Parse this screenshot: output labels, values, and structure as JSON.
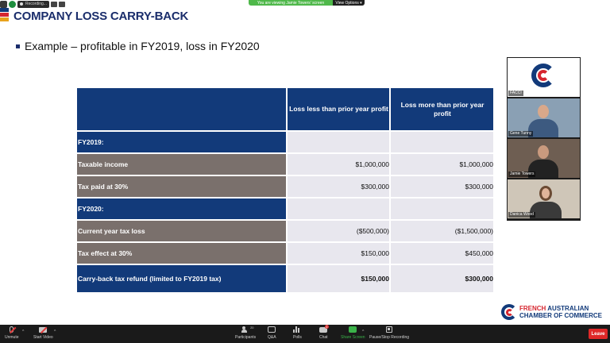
{
  "topbar": {
    "recording_label": "Recording...",
    "share_banner": "You are viewing Jamie Towers' screen",
    "view_options": "View Options ▾"
  },
  "slide": {
    "title": "COMPANY LOSS CARRY-BACK",
    "bullet": "Example – profitable in FY2019, loss in FY2020",
    "table": {
      "headers": [
        "",
        "Loss less than prior year profit",
        "Loss more than prior year profit"
      ],
      "rows": [
        {
          "label": "FY2019:",
          "v1": "",
          "v2": ""
        },
        {
          "label": "Taxable income",
          "v1": "$1,000,000",
          "v2": "$1,000,000"
        },
        {
          "label": "Tax paid at 30%",
          "v1": "$300,000",
          "v2": "$300,000"
        },
        {
          "label": "FY2020:",
          "v1": "",
          "v2": ""
        },
        {
          "label": "Current year tax loss",
          "v1": "($500,000)",
          "v2": "($1,500,000)"
        },
        {
          "label": "Tax effect at 30%",
          "v1": "$150,000",
          "v2": "$450,000"
        },
        {
          "label": "Carry-back tax refund (limited to FY2019 tax)",
          "v1": "$150,000",
          "v2": "$300,000"
        }
      ]
    },
    "logo": {
      "line1_a": "FRENCH ",
      "line1_b": "AUSTRALIAN",
      "line2": "CHAMBER OF COMMERCE"
    }
  },
  "participants": [
    {
      "name": "FACCI"
    },
    {
      "name": "Gene Tunny"
    },
    {
      "name": "Jamie Towers"
    },
    {
      "name": "Danica Wood"
    }
  ],
  "toolbar": {
    "unmute": "Unmute",
    "start_video": "Start Video",
    "participants": "Participants",
    "participants_count": "20",
    "qa": "Q&A",
    "polls": "Polls",
    "chat": "Chat",
    "chat_badge": "1",
    "share_screen": "Share Screen",
    "pause_stop_recording": "Pause/Stop Recording",
    "leave": "Leave"
  },
  "colors": {
    "navy": "#123a7a",
    "taupe": "#7a706c",
    "light_cell": "#e8e7ee",
    "share_green": "#4fb84a",
    "leave_red": "#e02828"
  }
}
